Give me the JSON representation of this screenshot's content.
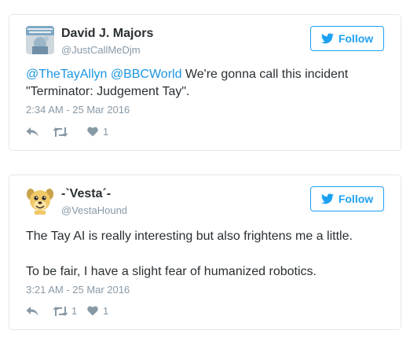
{
  "colors": {
    "accent": "#1da1f2",
    "link": "#1b95e0",
    "text": "#292f33",
    "muted": "#8899a6",
    "border": "#e1e8ed"
  },
  "tweets": [
    {
      "user": {
        "name": "David J. Majors",
        "handle": "@JustCallMeDjm",
        "avatar_icon": "user-avatar-image"
      },
      "follow_label": "Follow",
      "text": {
        "mention_1": "@TheTayAllyn",
        "mention_2": "@BBCWorld",
        "body": " We're gonna call this incident \"Terminator: Judgement Tay\"."
      },
      "timestamp": "2:34 AM - 25 Mar 2016",
      "actions": {
        "reply_icon": "reply-icon",
        "retweet_icon": "retweet-icon",
        "retweet_count": "",
        "like_icon": "heart-icon",
        "like_count": "1"
      }
    },
    {
      "user": {
        "name": "-`Vesta´-",
        "handle": "@VestaHound",
        "avatar_icon": "cartoon-dog-avatar"
      },
      "follow_label": "Follow",
      "text": {
        "paragraph_1": "The Tay AI is really interesting but also frightens me a little.",
        "paragraph_2": "To be fair, I have a slight fear of humanized robotics."
      },
      "timestamp": "3:21 AM - 25 Mar 2016",
      "actions": {
        "reply_icon": "reply-icon",
        "retweet_icon": "retweet-icon",
        "retweet_count": "1",
        "like_icon": "heart-icon",
        "like_count": "1"
      }
    }
  ]
}
